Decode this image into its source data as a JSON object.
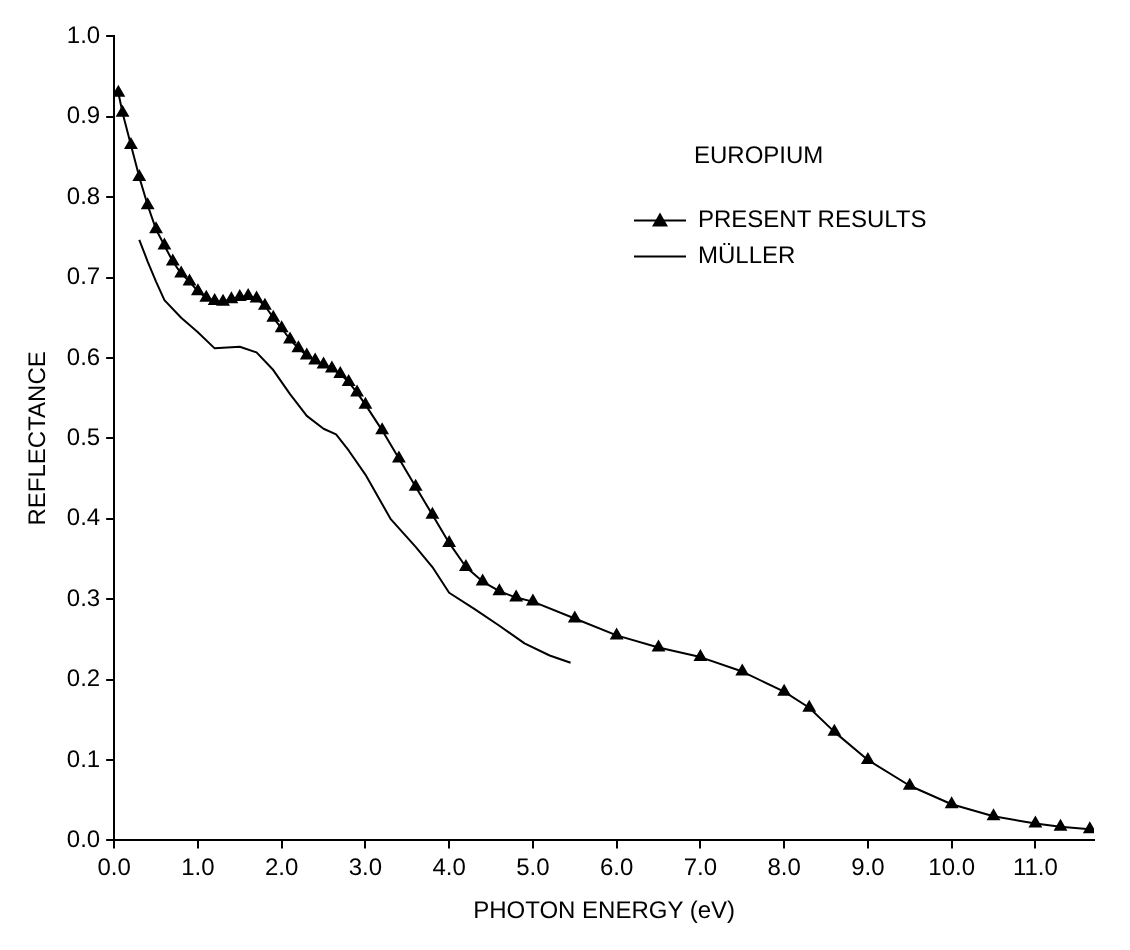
{
  "chart_data": {
    "type": "line",
    "xlabel": "PHOTON ENERGY (eV)",
    "ylabel": "REFLECTANCE",
    "legend_title": "EUROPIUM",
    "legend": "top right",
    "grid": false,
    "xlim": [
      0,
      11.7
    ],
    "xticks": [
      {
        "value": 0,
        "label": "0.0"
      },
      {
        "value": 1,
        "label": "1.0"
      },
      {
        "value": 2,
        "label": "2.0"
      },
      {
        "value": 3,
        "label": "3.0"
      },
      {
        "value": 4,
        "label": "4.0"
      },
      {
        "value": 5,
        "label": "5.0"
      },
      {
        "value": 6,
        "label": "6.0"
      },
      {
        "value": 7,
        "label": "7.0"
      },
      {
        "value": 8,
        "label": "8.0"
      },
      {
        "value": 9,
        "label": "9.0"
      },
      {
        "value": 10,
        "label": "10.0"
      },
      {
        "value": 11,
        "label": "11.0"
      }
    ],
    "ylim": [
      0,
      1
    ],
    "yticks": [
      {
        "value": 0,
        "label": "0.0"
      },
      0.1,
      0.2,
      0.3,
      0.4,
      0.5,
      0.6,
      0.7,
      0.8,
      0.9,
      {
        "value": 1,
        "label": "1.0"
      }
    ],
    "series": [
      {
        "name": "PRESENT RESULTS",
        "color": "#000000",
        "marker": "triangle",
        "line_style": "solid",
        "x": [
          0.05,
          0.1,
          0.2,
          0.3,
          0.4,
          0.5,
          0.6,
          0.7,
          0.8,
          0.9,
          1.0,
          1.1,
          1.2,
          1.3,
          1.4,
          1.5,
          1.6,
          1.7,
          1.8,
          1.9,
          2.0,
          2.1,
          2.2,
          2.3,
          2.4,
          2.5,
          2.6,
          2.7,
          2.8,
          2.9,
          3.0,
          3.2,
          3.4,
          3.6,
          3.8,
          4.0,
          4.2,
          4.4,
          4.6,
          4.8,
          5.0,
          5.5,
          6.0,
          6.5,
          7.0,
          7.5,
          8.0,
          8.3,
          8.6,
          9.0,
          9.5,
          10.0,
          10.5,
          11.0,
          11.3,
          11.65
        ],
        "values": [
          0.93,
          0.905,
          0.865,
          0.825,
          0.79,
          0.76,
          0.74,
          0.72,
          0.705,
          0.695,
          0.683,
          0.675,
          0.671,
          0.67,
          0.673,
          0.676,
          0.677,
          0.674,
          0.665,
          0.65,
          0.637,
          0.623,
          0.612,
          0.603,
          0.597,
          0.592,
          0.587,
          0.58,
          0.57,
          0.557,
          0.542,
          0.51,
          0.475,
          0.44,
          0.405,
          0.37,
          0.34,
          0.322,
          0.31,
          0.302,
          0.297,
          0.276,
          0.255,
          0.24,
          0.228,
          0.21,
          0.185,
          0.165,
          0.135,
          0.1,
          0.068,
          0.045,
          0.03,
          0.021,
          0.017,
          0.014
        ]
      },
      {
        "name": "MÜLLER",
        "color": "#000000",
        "marker": "none",
        "line_style": "solid",
        "x": [
          0.3,
          0.4,
          0.5,
          0.6,
          0.8,
          1.0,
          1.2,
          1.5,
          1.7,
          1.9,
          2.1,
          2.3,
          2.5,
          2.65,
          2.8,
          3.0,
          3.3,
          3.6,
          3.8,
          4.0,
          4.3,
          4.6,
          4.9,
          5.2,
          5.45
        ],
        "values": [
          0.747,
          0.72,
          0.695,
          0.672,
          0.65,
          0.632,
          0.612,
          0.614,
          0.607,
          0.585,
          0.555,
          0.528,
          0.512,
          0.505,
          0.485,
          0.455,
          0.4,
          0.365,
          0.34,
          0.308,
          0.288,
          0.267,
          0.245,
          0.23,
          0.221
        ]
      }
    ]
  }
}
